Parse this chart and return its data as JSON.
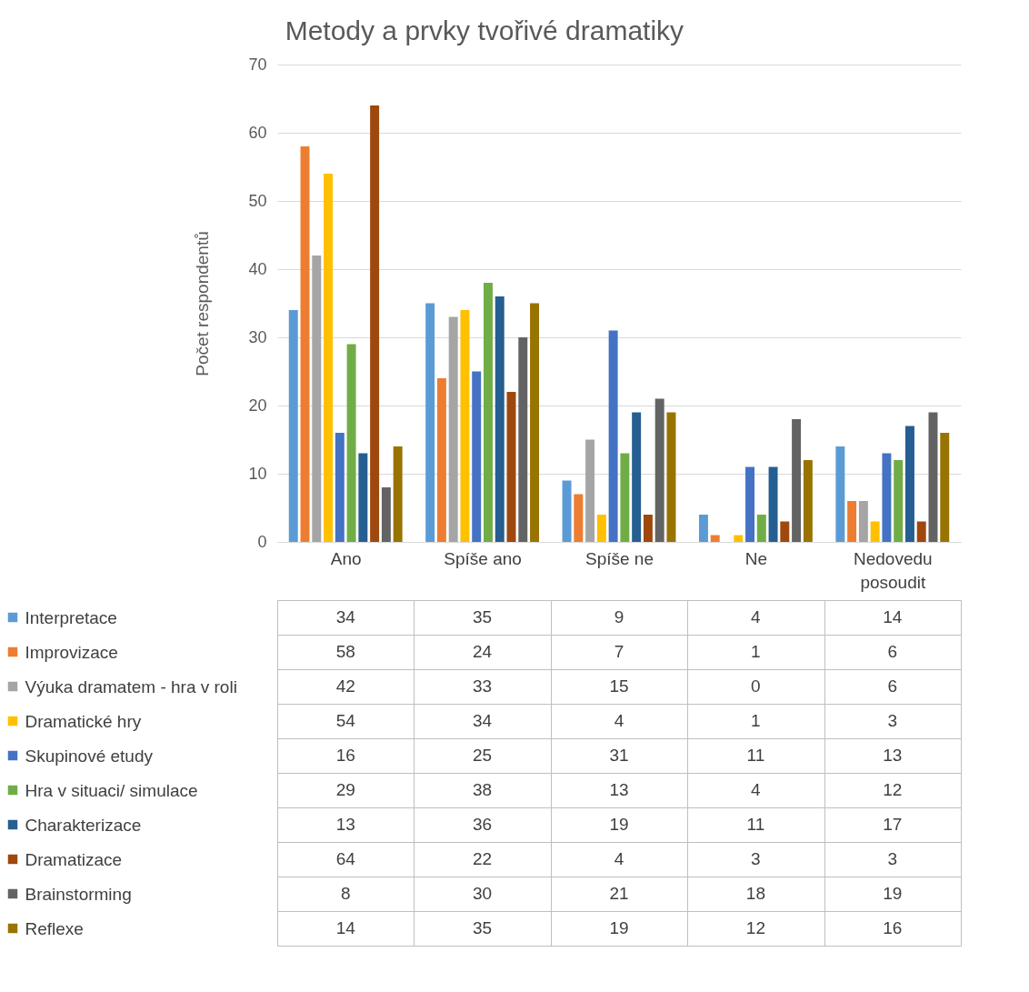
{
  "chart_data": {
    "type": "bar",
    "title": "Metody a prvky tvořivé dramatiky",
    "ylabel": "Počet respondentů",
    "categories": [
      "Ano",
      "Spíše ano",
      "Spíše ne",
      "Ne",
      "Nedovedu posoudit"
    ],
    "series": [
      {
        "name": "Interpretace",
        "color": "#5b9bd5",
        "values": [
          34,
          35,
          9,
          4,
          14
        ]
      },
      {
        "name": "Improvizace",
        "color": "#ed7d31",
        "values": [
          58,
          24,
          7,
          1,
          6
        ]
      },
      {
        "name": "Výuka dramatem - hra v roli",
        "color": "#a5a5a5",
        "values": [
          42,
          33,
          15,
          0,
          6
        ]
      },
      {
        "name": "Dramatické hry",
        "color": "#ffc000",
        "values": [
          54,
          34,
          4,
          1,
          3
        ]
      },
      {
        "name": "Skupinové etudy",
        "color": "#4472c4",
        "values": [
          16,
          25,
          31,
          11,
          13
        ]
      },
      {
        "name": "Hra v situaci/ simulace",
        "color": "#70ad47",
        "values": [
          29,
          38,
          13,
          4,
          12
        ]
      },
      {
        "name": "Charakterizace",
        "color": "#255e91",
        "values": [
          13,
          36,
          19,
          11,
          17
        ]
      },
      {
        "name": "Dramatizace",
        "color": "#9e480e",
        "values": [
          64,
          22,
          4,
          3,
          3
        ]
      },
      {
        "name": "Brainstorming",
        "color": "#636363",
        "values": [
          8,
          30,
          21,
          18,
          19
        ]
      },
      {
        "name": "Reflexe",
        "color": "#997300",
        "values": [
          14,
          35,
          19,
          12,
          16
        ]
      }
    ],
    "ylim": [
      0,
      70
    ],
    "yticks": [
      0,
      10,
      20,
      30,
      40,
      50,
      60,
      70
    ],
    "grid": "y",
    "legend": "left",
    "data_labels": true
  }
}
